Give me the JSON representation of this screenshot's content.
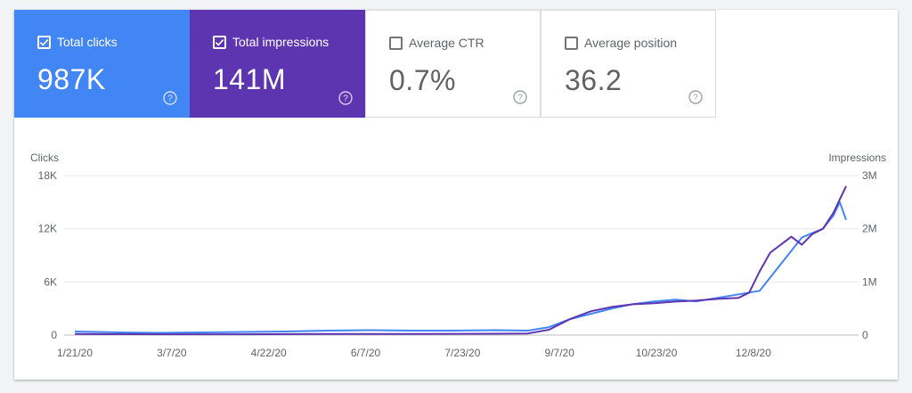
{
  "cards": [
    {
      "label": "Total clicks",
      "value": "987K",
      "checked": true,
      "color": "#4285f4"
    },
    {
      "label": "Total impressions",
      "value": "141M",
      "checked": true,
      "color": "#5e35b1"
    },
    {
      "label": "Average CTR",
      "value": "0.7%",
      "checked": false,
      "color": "#ffffff"
    },
    {
      "label": "Average position",
      "value": "36.2",
      "checked": false,
      "color": "#ffffff"
    }
  ],
  "icons": {
    "checkbox_checked": "check-icon",
    "help": "help-circle-icon"
  },
  "chart_data": {
    "type": "line",
    "left_axis_label": "Clicks",
    "right_axis_label": "Impressions",
    "left_ticks": [
      "18K",
      "12K",
      "6K",
      "0"
    ],
    "right_ticks": [
      "3M",
      "2M",
      "1M",
      "0"
    ],
    "ylim_left": [
      0,
      18000
    ],
    "ylim_right": [
      0,
      3000000
    ],
    "x_ticks": [
      "1/21/20",
      "3/7/20",
      "4/22/20",
      "6/7/20",
      "7/23/20",
      "9/7/20",
      "10/23/20",
      "12/8/20"
    ],
    "x_tick_day_index": [
      0,
      46,
      92,
      138,
      184,
      230,
      276,
      322
    ],
    "x_total_days": 350,
    "grid": true,
    "series": [
      {
        "name": "Total clicks",
        "axis": "left",
        "color": "#4285f4",
        "points": [
          [
            0,
            400
          ],
          [
            20,
            300
          ],
          [
            40,
            250
          ],
          [
            60,
            300
          ],
          [
            80,
            350
          ],
          [
            100,
            400
          ],
          [
            120,
            500
          ],
          [
            140,
            550
          ],
          [
            160,
            500
          ],
          [
            180,
            500
          ],
          [
            200,
            550
          ],
          [
            215,
            500
          ],
          [
            225,
            900
          ],
          [
            235,
            1800
          ],
          [
            245,
            2400
          ],
          [
            255,
            3000
          ],
          [
            265,
            3500
          ],
          [
            275,
            3800
          ],
          [
            285,
            4000
          ],
          [
            295,
            3800
          ],
          [
            305,
            4200
          ],
          [
            315,
            4600
          ],
          [
            325,
            5000
          ],
          [
            330,
            6500
          ],
          [
            335,
            8000
          ],
          [
            340,
            9500
          ],
          [
            345,
            11000
          ],
          [
            350,
            11500
          ],
          [
            355,
            12000
          ],
          [
            360,
            13500
          ],
          [
            363,
            15000
          ],
          [
            366,
            13000
          ]
        ]
      },
      {
        "name": "Total impressions",
        "axis": "right",
        "color": "#5e35b1",
        "points": [
          [
            0,
            20000
          ],
          [
            40,
            15000
          ],
          [
            80,
            15000
          ],
          [
            120,
            20000
          ],
          [
            160,
            20000
          ],
          [
            200,
            25000
          ],
          [
            215,
            30000
          ],
          [
            225,
            100000
          ],
          [
            235,
            300000
          ],
          [
            245,
            450000
          ],
          [
            255,
            530000
          ],
          [
            265,
            580000
          ],
          [
            275,
            600000
          ],
          [
            285,
            630000
          ],
          [
            295,
            650000
          ],
          [
            305,
            680000
          ],
          [
            315,
            700000
          ],
          [
            320,
            800000
          ],
          [
            325,
            1200000
          ],
          [
            330,
            1550000
          ],
          [
            335,
            1700000
          ],
          [
            340,
            1850000
          ],
          [
            345,
            1700000
          ],
          [
            350,
            1900000
          ],
          [
            355,
            2000000
          ],
          [
            360,
            2300000
          ],
          [
            363,
            2550000
          ],
          [
            366,
            2800000
          ]
        ]
      }
    ]
  }
}
